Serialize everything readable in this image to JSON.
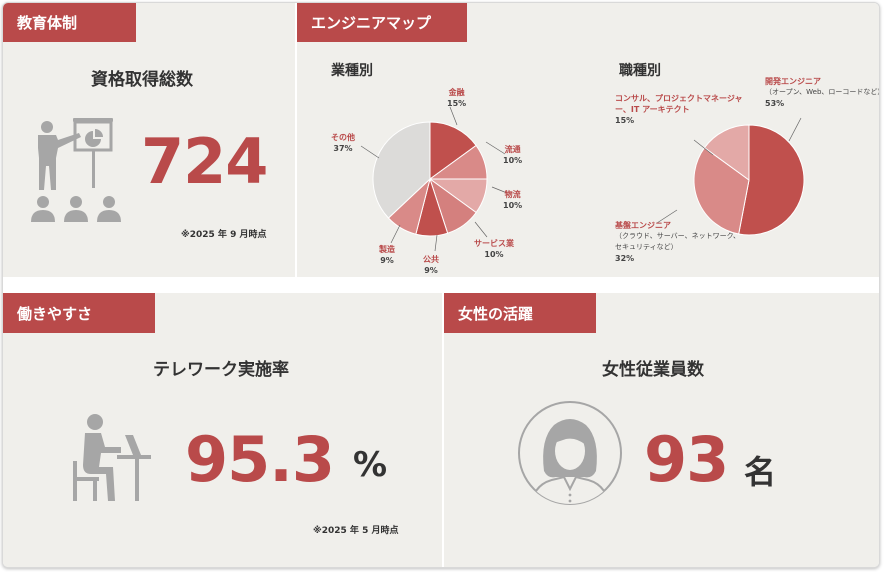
{
  "education": {
    "tag": "教育体制",
    "subtitle": "資格取得総数",
    "value": "724",
    "note": "※2025 年 9 月時点"
  },
  "engineer_map": {
    "tag": "エンジニアマップ",
    "industry_title": "業種別",
    "role_title": "職種別"
  },
  "workstyle": {
    "tag": "働きやすさ",
    "subtitle": "テレワーク実施率",
    "value": "95.3",
    "unit": "%",
    "note": "※2025 年 5 月時点"
  },
  "women": {
    "tag": "女性の活躍",
    "subtitle": "女性従業員数",
    "value": "93",
    "unit": "名"
  },
  "colors": {
    "accent": "#b94a4a",
    "panel_bg": "#f0efeb",
    "icon_gray": "#a6a6a6"
  },
  "chart_data": [
    {
      "type": "pie",
      "title": "業種別",
      "slices": [
        {
          "name": "金融",
          "value": 15,
          "label": "15%",
          "color": "#c0504d"
        },
        {
          "name": "流通",
          "value": 10,
          "label": "10%",
          "color": "#d98a88"
        },
        {
          "name": "物流",
          "value": 10,
          "label": "10%",
          "color": "#e3a9a7"
        },
        {
          "name": "サービス業",
          "value": 10,
          "label": "10%",
          "color": "#d4807e"
        },
        {
          "name": "公共",
          "value": 9,
          "label": "9%",
          "color": "#c0504d"
        },
        {
          "name": "製造",
          "value": 9,
          "label": "9%",
          "color": "#d98a88"
        },
        {
          "name": "その他",
          "value": 37,
          "label": "37%",
          "color": "#dcdbd9"
        }
      ]
    },
    {
      "type": "pie",
      "title": "職種別",
      "slices": [
        {
          "name": "開発エンジニア",
          "detail": "（オープン、Web、ローコードなど）",
          "value": 53,
          "label": "53%",
          "color": "#c0504d"
        },
        {
          "name": "基盤エンジニア",
          "detail": "（クラウド、サーバー、ネットワーク、セキュリティなど）",
          "value": 32,
          "label": "32%",
          "color": "#d98a88"
        },
        {
          "name": "コンサル、プロジェクトマネージャー、IT アーキテクト",
          "value": 15,
          "label": "15%",
          "color": "#e3a9a7"
        }
      ]
    }
  ]
}
